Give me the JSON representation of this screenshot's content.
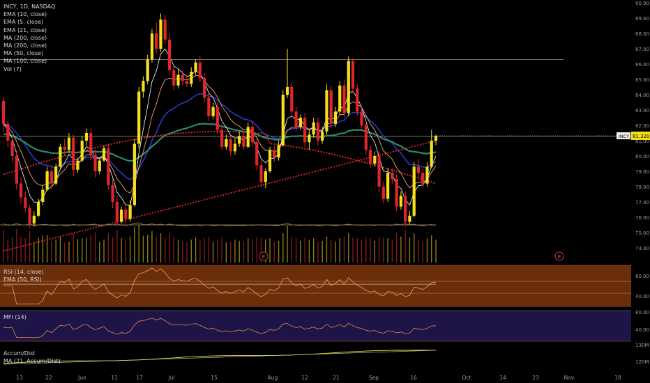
{
  "header": {
    "legend": [
      "INCY, 1D, NASDAQ",
      "EMA (10, close)",
      "EMA (5, close)",
      "EMA (21, close)",
      "MA (200, close)",
      "MA (200, close)",
      "MA (50, close)",
      "MA (100, close)",
      "Vol (7)"
    ]
  },
  "panes": {
    "rsi": {
      "legend": [
        "RSI (14, close)",
        "EMA (50, RSI)"
      ],
      "ticks": [
        "60.00",
        "40.00"
      ]
    },
    "mfi": {
      "legend": [
        "MFI (14)"
      ],
      "ticks": [
        "80.00",
        "40.00"
      ]
    },
    "ad": {
      "legend": [
        "Accum/Dist",
        "MA (21, Accum/Dist)"
      ],
      "ticks": [
        "130M",
        "120M"
      ]
    }
  },
  "colors": {
    "up": "#f5e11b",
    "down": "#e0262b",
    "ema10": "#f4a46a",
    "ema5": "#ffffff",
    "ema21": "#2c3bc2",
    "ma200": "#e0262b",
    "ma50": "#2e8b6e",
    "ma100": "#9c7a4a",
    "rsi_band": "#6a2e0a",
    "mfi_band": "#1e1448"
  },
  "markers": [
    {
      "label": "E"
    },
    {
      "label": "E"
    }
  ],
  "price_label": {
    "ticker": "INCY",
    "value": "81.320"
  },
  "chart_data": {
    "type": "candlestick",
    "title": "INCY, 1D, NASDAQ",
    "price_axis": {
      "ylim": [
        73.5,
        90.0
      ],
      "ticks": [
        "90.00",
        "89.00",
        "88.00",
        "87.00",
        "86.00",
        "85.00",
        "84.00",
        "83.00",
        "82.00",
        "81.00",
        "80.00",
        "79.00",
        "78.00",
        "77.00",
        "76.00",
        "75.00",
        "74.00"
      ]
    },
    "x_ticks": [
      "13",
      "22",
      "Jun",
      "11",
      "17",
      "Jul",
      "15",
      "Aug",
      "12",
      "21",
      "Sep",
      "16",
      "Oct",
      "14",
      "23",
      "Nov",
      "18"
    ],
    "horizontal_levels": [
      86.3,
      81.3,
      75.5
    ],
    "candles": [
      [
        83.6,
        83.8,
        81.6,
        82.1
      ],
      [
        82.1,
        82.3,
        80.6,
        81.0
      ],
      [
        81.0,
        81.2,
        79.6,
        80.0
      ],
      [
        80.0,
        80.4,
        77.8,
        78.2
      ],
      [
        78.2,
        78.6,
        76.9,
        77.3
      ],
      [
        77.3,
        77.7,
        76.3,
        76.6
      ],
      [
        76.6,
        76.8,
        75.3,
        75.6
      ],
      [
        75.6,
        76.4,
        75.4,
        76.1
      ],
      [
        76.1,
        77.2,
        76.0,
        77.0
      ],
      [
        77.0,
        78.1,
        76.8,
        77.8
      ],
      [
        77.8,
        79.3,
        77.7,
        79.0
      ],
      [
        79.0,
        79.4,
        77.9,
        78.2
      ],
      [
        78.2,
        79.5,
        78.1,
        79.3
      ],
      [
        79.3,
        80.8,
        79.2,
        80.6
      ],
      [
        80.6,
        81.1,
        80.0,
        80.4
      ],
      [
        80.4,
        81.5,
        80.2,
        81.2
      ],
      [
        81.2,
        81.4,
        78.7,
        79.1
      ],
      [
        79.1,
        79.9,
        78.9,
        79.7
      ],
      [
        79.7,
        81.3,
        79.6,
        81.0
      ],
      [
        81.0,
        81.8,
        80.7,
        81.5
      ],
      [
        81.5,
        81.8,
        79.7,
        80.1
      ],
      [
        80.1,
        80.4,
        78.6,
        79.0
      ],
      [
        79.0,
        79.9,
        78.8,
        79.7
      ],
      [
        79.7,
        80.7,
        79.6,
        80.5
      ],
      [
        80.5,
        80.8,
        77.8,
        78.1
      ],
      [
        78.1,
        78.5,
        76.6,
        77.0
      ],
      [
        77.0,
        77.4,
        75.4,
        75.7
      ],
      [
        75.7,
        76.7,
        75.6,
        76.5
      ],
      [
        76.5,
        76.8,
        75.6,
        75.9
      ],
      [
        75.9,
        77.1,
        75.7,
        76.8
      ],
      [
        76.8,
        81.1,
        76.7,
        80.8
      ],
      [
        80.8,
        84.5,
        80.5,
        84.2
      ],
      [
        84.2,
        85.2,
        83.8,
        84.9
      ],
      [
        84.9,
        86.6,
        84.7,
        86.3
      ],
      [
        86.3,
        88.3,
        86.1,
        88.0
      ],
      [
        88.0,
        88.7,
        86.7,
        87.0
      ],
      [
        87.0,
        89.3,
        86.8,
        88.9
      ],
      [
        88.9,
        89.2,
        87.3,
        87.6
      ],
      [
        87.6,
        88.0,
        85.3,
        85.6
      ],
      [
        85.6,
        85.9,
        84.3,
        84.6
      ],
      [
        84.6,
        85.7,
        84.4,
        85.3
      ],
      [
        85.3,
        85.6,
        84.6,
        84.9
      ],
      [
        84.9,
        85.3,
        84.5,
        84.7
      ],
      [
        84.7,
        85.8,
        84.5,
        85.5
      ],
      [
        85.5,
        86.3,
        85.3,
        86.1
      ],
      [
        86.1,
        86.5,
        84.8,
        85.1
      ],
      [
        85.1,
        85.4,
        83.5,
        83.8
      ],
      [
        83.8,
        84.1,
        82.3,
        82.6
      ],
      [
        82.6,
        83.5,
        82.4,
        83.2
      ],
      [
        83.2,
        83.5,
        81.4,
        81.7
      ],
      [
        81.7,
        82.0,
        80.4,
        80.6
      ],
      [
        80.6,
        81.4,
        80.4,
        81.1
      ],
      [
        81.1,
        81.3,
        80.0,
        80.3
      ],
      [
        80.3,
        81.1,
        80.1,
        80.8
      ],
      [
        80.8,
        81.6,
        80.6,
        81.3
      ],
      [
        81.3,
        81.6,
        80.4,
        80.6
      ],
      [
        80.6,
        82.2,
        80.5,
        81.9
      ],
      [
        81.9,
        82.3,
        80.6,
        80.9
      ],
      [
        80.9,
        81.2,
        79.1,
        79.4
      ],
      [
        79.4,
        79.7,
        78.0,
        78.3
      ],
      [
        78.3,
        79.2,
        77.9,
        79.0
      ],
      [
        79.0,
        80.6,
        78.9,
        80.4
      ],
      [
        80.4,
        80.7,
        79.6,
        79.9
      ],
      [
        79.9,
        81.0,
        79.7,
        80.7
      ],
      [
        80.7,
        84.3,
        80.6,
        84.0
      ],
      [
        84.0,
        87.0,
        83.8,
        84.5
      ],
      [
        84.5,
        84.8,
        82.6,
        82.9
      ],
      [
        82.9,
        83.2,
        81.6,
        81.9
      ],
      [
        81.9,
        82.7,
        81.7,
        82.5
      ],
      [
        82.5,
        82.8,
        80.6,
        80.9
      ],
      [
        80.9,
        81.7,
        80.4,
        81.4
      ],
      [
        81.4,
        82.5,
        81.2,
        82.2
      ],
      [
        82.2,
        82.5,
        80.7,
        81.0
      ],
      [
        81.0,
        81.9,
        80.8,
        81.6
      ],
      [
        81.6,
        84.7,
        81.4,
        84.3
      ],
      [
        84.3,
        84.6,
        81.8,
        82.1
      ],
      [
        82.1,
        83.2,
        81.9,
        82.9
      ],
      [
        82.9,
        84.9,
        82.7,
        84.6
      ],
      [
        84.6,
        85.0,
        82.5,
        82.8
      ],
      [
        82.8,
        86.5,
        82.6,
        86.2
      ],
      [
        86.2,
        86.4,
        84.1,
        84.4
      ],
      [
        84.4,
        84.7,
        82.6,
        82.9
      ],
      [
        82.9,
        83.2,
        81.7,
        82.0
      ],
      [
        82.0,
        82.3,
        80.1,
        80.4
      ],
      [
        80.4,
        80.7,
        79.2,
        79.5
      ],
      [
        79.5,
        80.3,
        79.3,
        80.0
      ],
      [
        80.0,
        80.3,
        77.7,
        78.0
      ],
      [
        78.0,
        78.3,
        76.9,
        77.2
      ],
      [
        77.2,
        79.2,
        77.0,
        78.9
      ],
      [
        78.9,
        79.2,
        78.2,
        78.5
      ],
      [
        78.5,
        78.8,
        76.4,
        76.7
      ],
      [
        76.7,
        77.7,
        76.5,
        77.4
      ],
      [
        77.4,
        77.7,
        75.4,
        75.7
      ],
      [
        75.7,
        76.4,
        75.5,
        76.1
      ],
      [
        76.1,
        79.6,
        76.0,
        79.3
      ],
      [
        79.3,
        79.8,
        78.6,
        78.9
      ],
      [
        78.9,
        79.2,
        77.9,
        78.2
      ],
      [
        78.2,
        79.6,
        78.0,
        79.3
      ],
      [
        79.3,
        81.7,
        79.2,
        81.0
      ],
      [
        81.0,
        81.4,
        80.7,
        81.3
      ]
    ],
    "volume": [
      0.78,
      0.55,
      0.6,
      0.8,
      0.62,
      0.58,
      0.75,
      0.5,
      0.6,
      0.65,
      0.66,
      0.52,
      0.55,
      0.62,
      0.48,
      0.5,
      0.7,
      0.56,
      0.58,
      0.6,
      0.65,
      0.72,
      0.5,
      0.55,
      0.7,
      0.6,
      0.78,
      0.58,
      0.55,
      0.62,
      0.85,
      0.9,
      0.64,
      0.66,
      0.75,
      0.62,
      0.7,
      0.58,
      0.72,
      0.6,
      0.55,
      0.5,
      0.48,
      0.55,
      0.6,
      0.52,
      0.58,
      0.62,
      0.5,
      0.55,
      0.6,
      0.48,
      0.5,
      0.55,
      0.52,
      0.5,
      0.58,
      0.55,
      0.62,
      0.6,
      0.55,
      0.58,
      0.5,
      0.52,
      0.7,
      0.88,
      0.6,
      0.58,
      0.52,
      0.6,
      0.55,
      0.58,
      0.5,
      0.52,
      0.62,
      0.55,
      0.5,
      0.58,
      0.62,
      0.7,
      0.6,
      0.58,
      0.55,
      0.6,
      0.58,
      0.52,
      0.62,
      0.6,
      0.58,
      0.55,
      0.72,
      0.62,
      0.78,
      0.6,
      0.7,
      0.55,
      0.5,
      0.58,
      0.65,
      0.55
    ],
    "ema50_rsi": 52,
    "mfi_range": [
      36,
      68
    ]
  }
}
